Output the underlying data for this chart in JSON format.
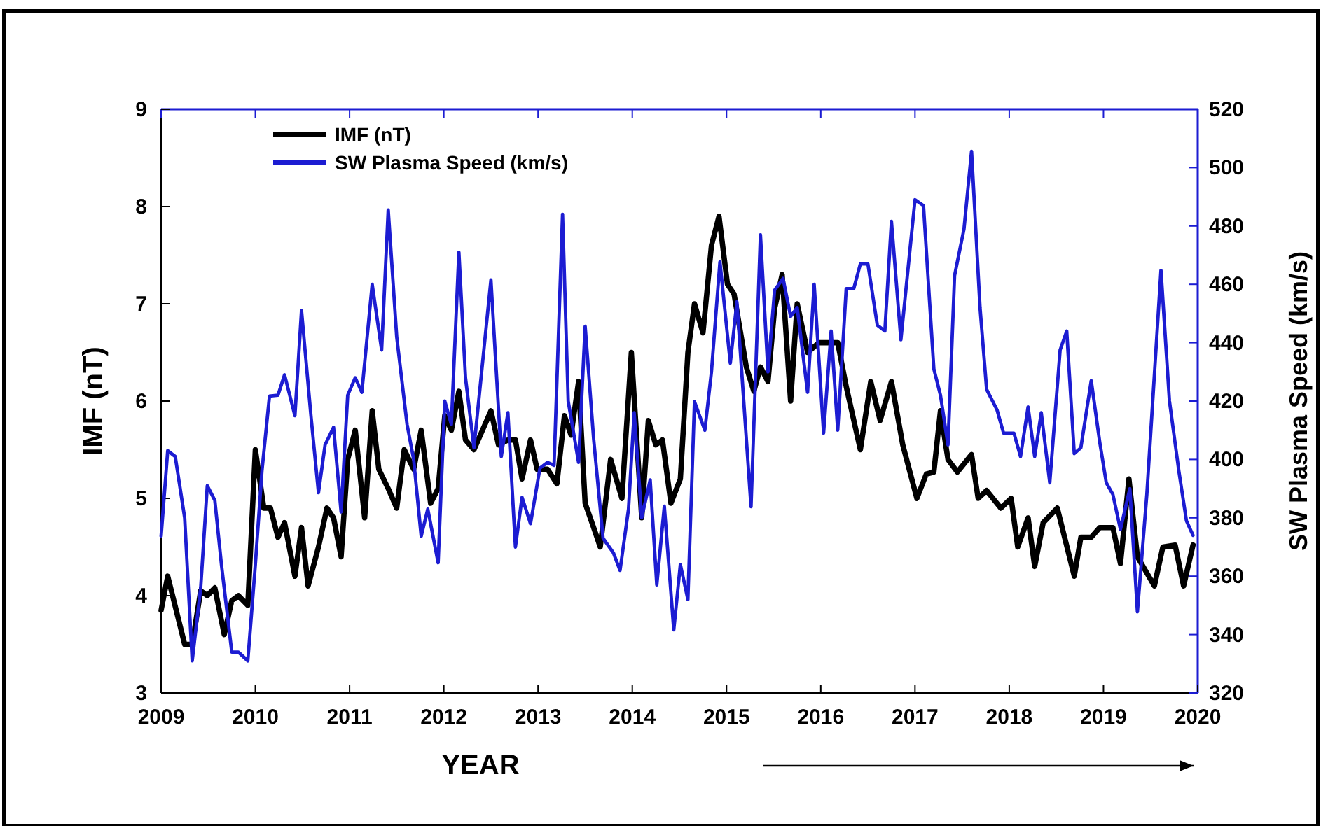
{
  "chart_data": {
    "type": "line",
    "xlabel": "YEAR",
    "ylabel": "IMF (nT)",
    "y2label": "SW Plasma Speed (km/s)",
    "xlim": [
      2009,
      2020
    ],
    "xticks": [
      2009,
      2010,
      2011,
      2012,
      2013,
      2014,
      2015,
      2016,
      2017,
      2018,
      2019,
      2020
    ],
    "ylim": [
      3,
      9
    ],
    "yticks": [
      3,
      4,
      5,
      6,
      7,
      8,
      9
    ],
    "y2lim": [
      320,
      520
    ],
    "y2ticks": [
      320,
      340,
      360,
      380,
      400,
      420,
      440,
      460,
      480,
      500,
      520
    ],
    "legend": "top left",
    "grid": false,
    "line_style": "solid",
    "marker": "none",
    "series": [
      {
        "name": "IMF (nT)",
        "color": "#000000",
        "x": [
          2009.0,
          2009.07,
          2009.25,
          2009.33,
          2009.42,
          2009.49,
          2009.57,
          2009.67,
          2009.75,
          2009.82,
          2009.92,
          2010.0,
          2010.09,
          2010.16,
          2010.24,
          2010.31,
          2010.42,
          2010.49,
          2010.56,
          2010.67,
          2010.76,
          2010.83,
          2010.91,
          2010.98,
          2011.06,
          2011.16,
          2011.24,
          2011.31,
          2011.41,
          2011.5,
          2011.58,
          2011.68,
          2011.76,
          2011.86,
          2011.94,
          2012.01,
          2012.08,
          2012.16,
          2012.23,
          2012.32,
          2012.5,
          2012.58,
          2012.68,
          2012.76,
          2012.83,
          2012.92,
          2012.99,
          2013.1,
          2013.2,
          2013.28,
          2013.35,
          2013.43,
          2013.5,
          2013.59,
          2013.66,
          2013.77,
          2013.89,
          2013.99,
          2014.1,
          2014.17,
          2014.25,
          2014.32,
          2014.41,
          2014.51,
          2014.59,
          2014.66,
          2014.75,
          2014.84,
          2014.92,
          2015.01,
          2015.08,
          2015.21,
          2015.29,
          2015.36,
          2015.44,
          2015.51,
          2015.59,
          2015.68,
          2015.75,
          2015.86,
          2015.98,
          2016.08,
          2016.18,
          2016.27,
          2016.42,
          2016.53,
          2016.63,
          2016.75,
          2016.87,
          2017.02,
          2017.12,
          2017.2,
          2017.27,
          2017.35,
          2017.45,
          2017.6,
          2017.67,
          2017.76,
          2017.91,
          2018.02,
          2018.09,
          2018.2,
          2018.27,
          2018.36,
          2018.51,
          2018.69,
          2018.76,
          2018.87,
          2018.96,
          2019.1,
          2019.18,
          2019.27,
          2019.36,
          2019.54,
          2019.63,
          2019.76,
          2019.85,
          2019.95
        ],
        "values": [
          3.85,
          4.2,
          3.5,
          3.5,
          4.05,
          4.0,
          4.08,
          3.6,
          3.95,
          4.0,
          3.9,
          5.5,
          4.9,
          4.9,
          4.6,
          4.75,
          4.2,
          4.7,
          4.1,
          4.5,
          4.9,
          4.8,
          4.4,
          5.4,
          5.7,
          4.8,
          5.9,
          5.3,
          5.1,
          4.9,
          5.5,
          5.3,
          5.7,
          4.95,
          5.1,
          5.85,
          5.7,
          6.1,
          5.6,
          5.5,
          5.9,
          5.55,
          5.6,
          5.6,
          5.2,
          5.6,
          5.3,
          5.3,
          5.15,
          5.85,
          5.65,
          6.2,
          4.95,
          4.7,
          4.5,
          5.4,
          5.0,
          6.5,
          4.8,
          5.8,
          5.55,
          5.6,
          4.95,
          5.2,
          6.5,
          7.0,
          6.7,
          7.6,
          7.9,
          7.2,
          7.1,
          6.35,
          6.1,
          6.35,
          6.2,
          6.95,
          7.3,
          6.0,
          7.0,
          6.5,
          6.6,
          6.6,
          6.6,
          6.15,
          5.5,
          6.2,
          5.8,
          6.2,
          5.55,
          5.0,
          5.25,
          5.27,
          5.9,
          5.4,
          5.27,
          5.45,
          5.0,
          5.08,
          4.9,
          5.0,
          4.5,
          4.8,
          4.3,
          4.75,
          4.9,
          4.2,
          4.6,
          4.6,
          4.7,
          4.7,
          4.33,
          5.2,
          4.4,
          4.1,
          4.5,
          4.52,
          4.1,
          4.52
        ]
      },
      {
        "name": "SW Plasma Speed (km/s)",
        "color": "#1c1cd2",
        "axis": "y2",
        "x": [
          2009.0,
          2009.07,
          2009.15,
          2009.25,
          2009.33,
          2009.42,
          2009.49,
          2009.57,
          2009.64,
          2009.75,
          2009.82,
          2009.92,
          2010.0,
          2010.07,
          2010.15,
          2010.24,
          2010.31,
          2010.42,
          2010.49,
          2010.59,
          2010.67,
          2010.74,
          2010.83,
          2010.91,
          2010.98,
          2011.06,
          2011.13,
          2011.24,
          2011.34,
          2011.41,
          2011.5,
          2011.61,
          2011.68,
          2011.76,
          2011.83,
          2011.94,
          2012.01,
          2012.08,
          2012.16,
          2012.23,
          2012.32,
          2012.5,
          2012.61,
          2012.68,
          2012.76,
          2012.83,
          2012.92,
          2013.02,
          2013.1,
          2013.17,
          2013.26,
          2013.32,
          2013.43,
          2013.5,
          2013.59,
          2013.69,
          2013.8,
          2013.87,
          2013.96,
          2014.02,
          2014.1,
          2014.19,
          2014.26,
          2014.34,
          2014.44,
          2014.51,
          2014.59,
          2014.66,
          2014.77,
          2014.84,
          2014.93,
          2015.04,
          2015.11,
          2015.26,
          2015.36,
          2015.44,
          2015.51,
          2015.6,
          2015.68,
          2015.75,
          2015.86,
          2015.93,
          2016.03,
          2016.11,
          2016.18,
          2016.27,
          2016.35,
          2016.42,
          2016.5,
          2016.6,
          2016.68,
          2016.75,
          2016.85,
          2017.0,
          2017.09,
          2017.2,
          2017.27,
          2017.35,
          2017.42,
          2017.52,
          2017.6,
          2017.69,
          2017.76,
          2017.87,
          2017.94,
          2018.05,
          2018.12,
          2018.2,
          2018.27,
          2018.34,
          2018.43,
          2018.54,
          2018.61,
          2018.69,
          2018.76,
          2018.87,
          2018.96,
          2019.03,
          2019.1,
          2019.18,
          2019.28,
          2019.36,
          2019.46,
          2019.61,
          2019.7,
          2019.8,
          2019.88,
          2019.95
        ],
        "values": [
          373.7,
          403,
          401,
          380,
          331,
          356,
          391,
          386,
          364,
          334,
          334,
          331,
          364,
          396,
          421.7,
          422,
          429,
          415,
          451,
          415,
          388.6,
          405,
          411,
          382,
          422,
          428,
          423,
          460,
          437.5,
          485.5,
          442,
          412,
          400,
          373.7,
          383,
          364.6,
          420,
          412,
          471,
          428,
          404,
          461.5,
          401,
          416,
          370,
          387,
          378,
          397,
          399,
          398,
          484,
          420,
          399,
          445.6,
          407,
          373,
          368,
          362,
          383,
          416,
          380,
          393,
          357,
          384,
          341.6,
          364,
          352,
          419.8,
          410,
          430,
          467.7,
          433,
          454,
          383.8,
          477,
          430,
          458,
          462,
          449,
          452,
          423,
          460,
          409,
          444,
          410,
          458.5,
          458.5,
          467,
          467,
          446,
          444,
          481.6,
          441,
          489,
          487,
          431,
          422,
          405,
          463,
          479,
          505.6,
          452,
          424,
          417,
          409,
          409,
          401,
          418,
          401,
          416,
          392,
          437.5,
          444,
          402,
          404,
          427,
          406,
          392,
          388,
          376,
          390,
          347.8,
          388,
          464.8,
          420,
          396,
          379,
          374
        ]
      }
    ]
  }
}
